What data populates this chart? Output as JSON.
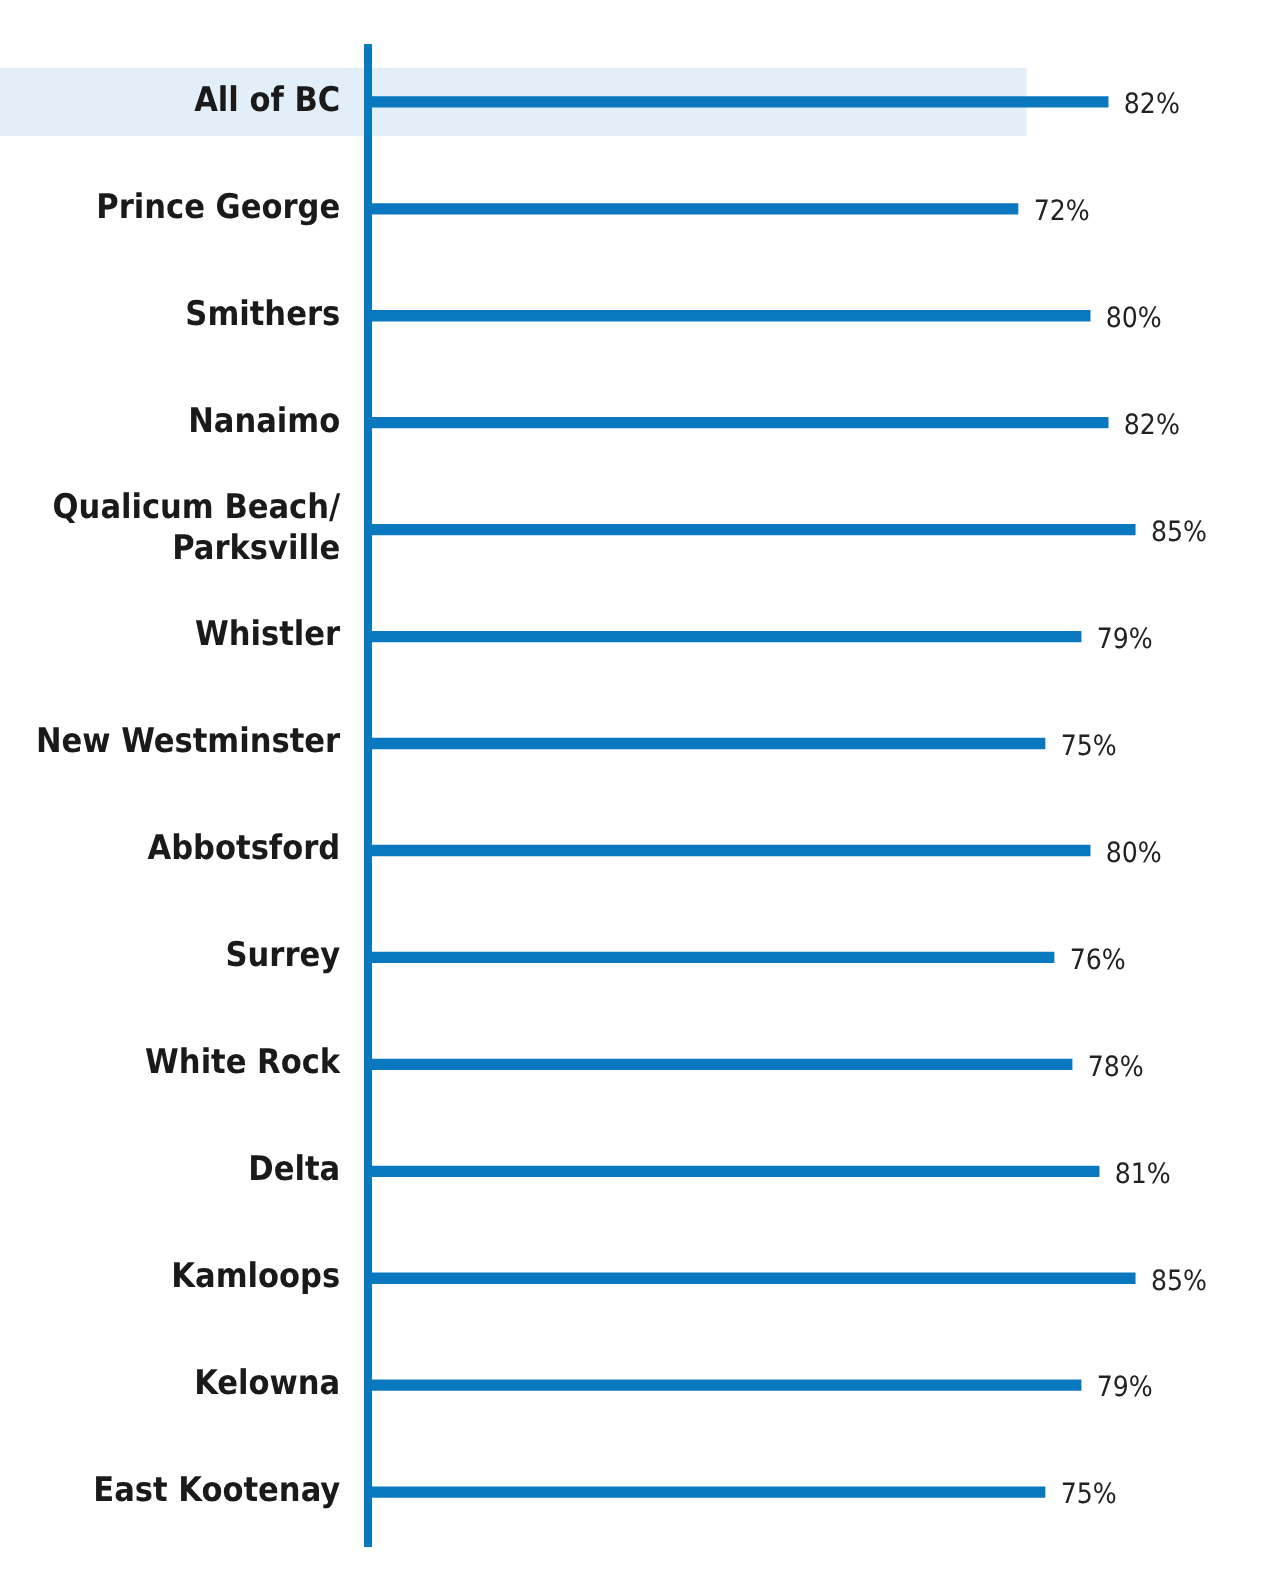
{
  "chart_data": {
    "type": "bar",
    "orientation": "horizontal",
    "categories": [
      "All of BC",
      "Prince George",
      "Smithers",
      "Nanaimo",
      "Qualicum Beach/\nParksville",
      "Whistler",
      "New Westminster",
      "Abbotsford",
      "Surrey",
      "White Rock",
      "Delta",
      "Kamloops",
      "Kelowna",
      "East Kootenay"
    ],
    "values": [
      82,
      72,
      80,
      82,
      85,
      79,
      75,
      80,
      76,
      78,
      81,
      85,
      79,
      75
    ],
    "value_labels": [
      "82%",
      "72%",
      "80%",
      "82%",
      "85%",
      "79%",
      "75%",
      "80%",
      "76%",
      "78%",
      "81%",
      "85%",
      "79%",
      "75%"
    ],
    "color": "#0a78be",
    "tick_labels": "y",
    "grid": false,
    "legend": false,
    "bands": [
      {
        "axis": "y",
        "from": "All of BC",
        "to": "All of BC",
        "color": "#e2eef8"
      }
    ]
  }
}
